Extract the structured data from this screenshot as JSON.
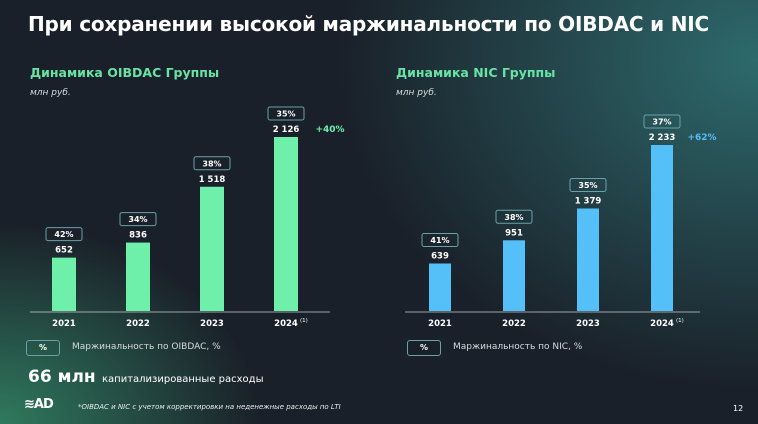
{
  "title": "При сохранении высокой маржинальности по OIBDAC и NIC",
  "chart_data": [
    {
      "type": "bar",
      "title": "Динамика OIBDAC Группы",
      "ylabel": "млн руб.",
      "categories": [
        "2021",
        "2022",
        "2023",
        "2024"
      ],
      "footnote_marker": "(1)",
      "values": [
        652,
        836,
        1518,
        2126
      ],
      "value_labels": [
        "652",
        "836",
        "1 518",
        "2 126"
      ],
      "margins": [
        "42%",
        "34%",
        "38%",
        "35%"
      ],
      "growth": "+40%",
      "color": "#6ef0aa",
      "legend": "Маржинальность по OIBDAC, %",
      "legend_symbol": "%"
    },
    {
      "type": "bar",
      "title": "Динамика NIC Группы",
      "ylabel": "млн руб.",
      "categories": [
        "2021",
        "2022",
        "2023",
        "2024"
      ],
      "footnote_marker": "(1)",
      "values": [
        639,
        951,
        1379,
        2233
      ],
      "value_labels": [
        "639",
        "951",
        "1 379",
        "2 233"
      ],
      "margins": [
        "41%",
        "38%",
        "35%",
        "37%"
      ],
      "growth": "+62%",
      "color": "#55bff7",
      "legend": "Маржинальность по NIC, %",
      "legend_symbol": "%"
    }
  ],
  "capex": {
    "value": "66 млн",
    "label": "капитализированные расходы"
  },
  "logo": "AD",
  "footnote": "*OIBDAC и NIC с учетом корректировки на неденежные расходы по LTI",
  "page_number": "12"
}
